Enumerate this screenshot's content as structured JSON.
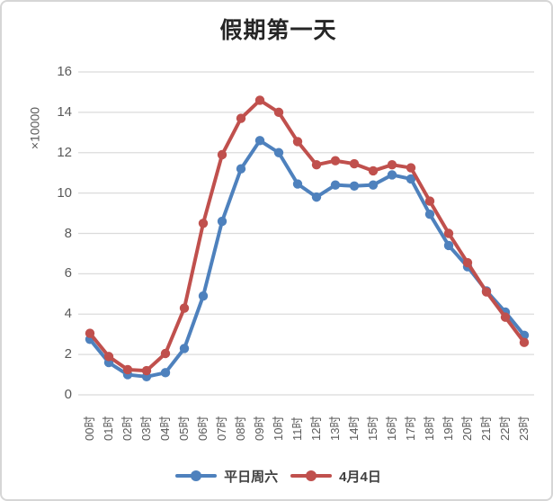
{
  "title": "假期第一天",
  "colors": {
    "series_blue": "#4E81BD",
    "series_red": "#C0504D",
    "gridline": "#DBDBDB",
    "axis_text": "#595959",
    "title_text": "#262626",
    "card_border": "#D6D6D6"
  },
  "y_axis": {
    "unit_label": "×10000",
    "tick_labels": [
      "0",
      "2",
      "4",
      "6",
      "8",
      "10",
      "12",
      "14",
      "16"
    ]
  },
  "chart_data": {
    "type": "line",
    "title": "假期第一天",
    "xlabel": "",
    "ylabel": "×10000",
    "ylim": [
      0,
      16
    ],
    "ytick_step": 2,
    "grid": true,
    "legend_position": "bottom",
    "categories": [
      "00时",
      "01时",
      "02时",
      "03时",
      "04时",
      "05时",
      "06时",
      "07时",
      "08时",
      "09时",
      "10时",
      "11时",
      "12时",
      "13时",
      "14时",
      "15时",
      "16时",
      "17时",
      "18时",
      "19时",
      "20时",
      "21时",
      "22时",
      "23时"
    ],
    "series": [
      {
        "name": "平日周六",
        "color": "#4E81BD",
        "values": [
          2.75,
          1.6,
          1.0,
          0.9,
          1.1,
          2.3,
          4.9,
          8.6,
          11.2,
          12.6,
          12.0,
          10.45,
          9.8,
          10.4,
          10.35,
          10.4,
          10.9,
          10.7,
          8.95,
          7.4,
          6.35,
          5.15,
          4.1,
          2.95
        ]
      },
      {
        "name": "4月4日",
        "color": "#C0504D",
        "values": [
          3.05,
          1.9,
          1.25,
          1.2,
          2.05,
          4.3,
          8.5,
          11.9,
          13.7,
          14.6,
          14.0,
          12.55,
          11.4,
          11.6,
          11.45,
          11.1,
          11.4,
          11.25,
          9.6,
          8.0,
          6.55,
          5.1,
          3.85,
          2.6
        ]
      }
    ]
  }
}
